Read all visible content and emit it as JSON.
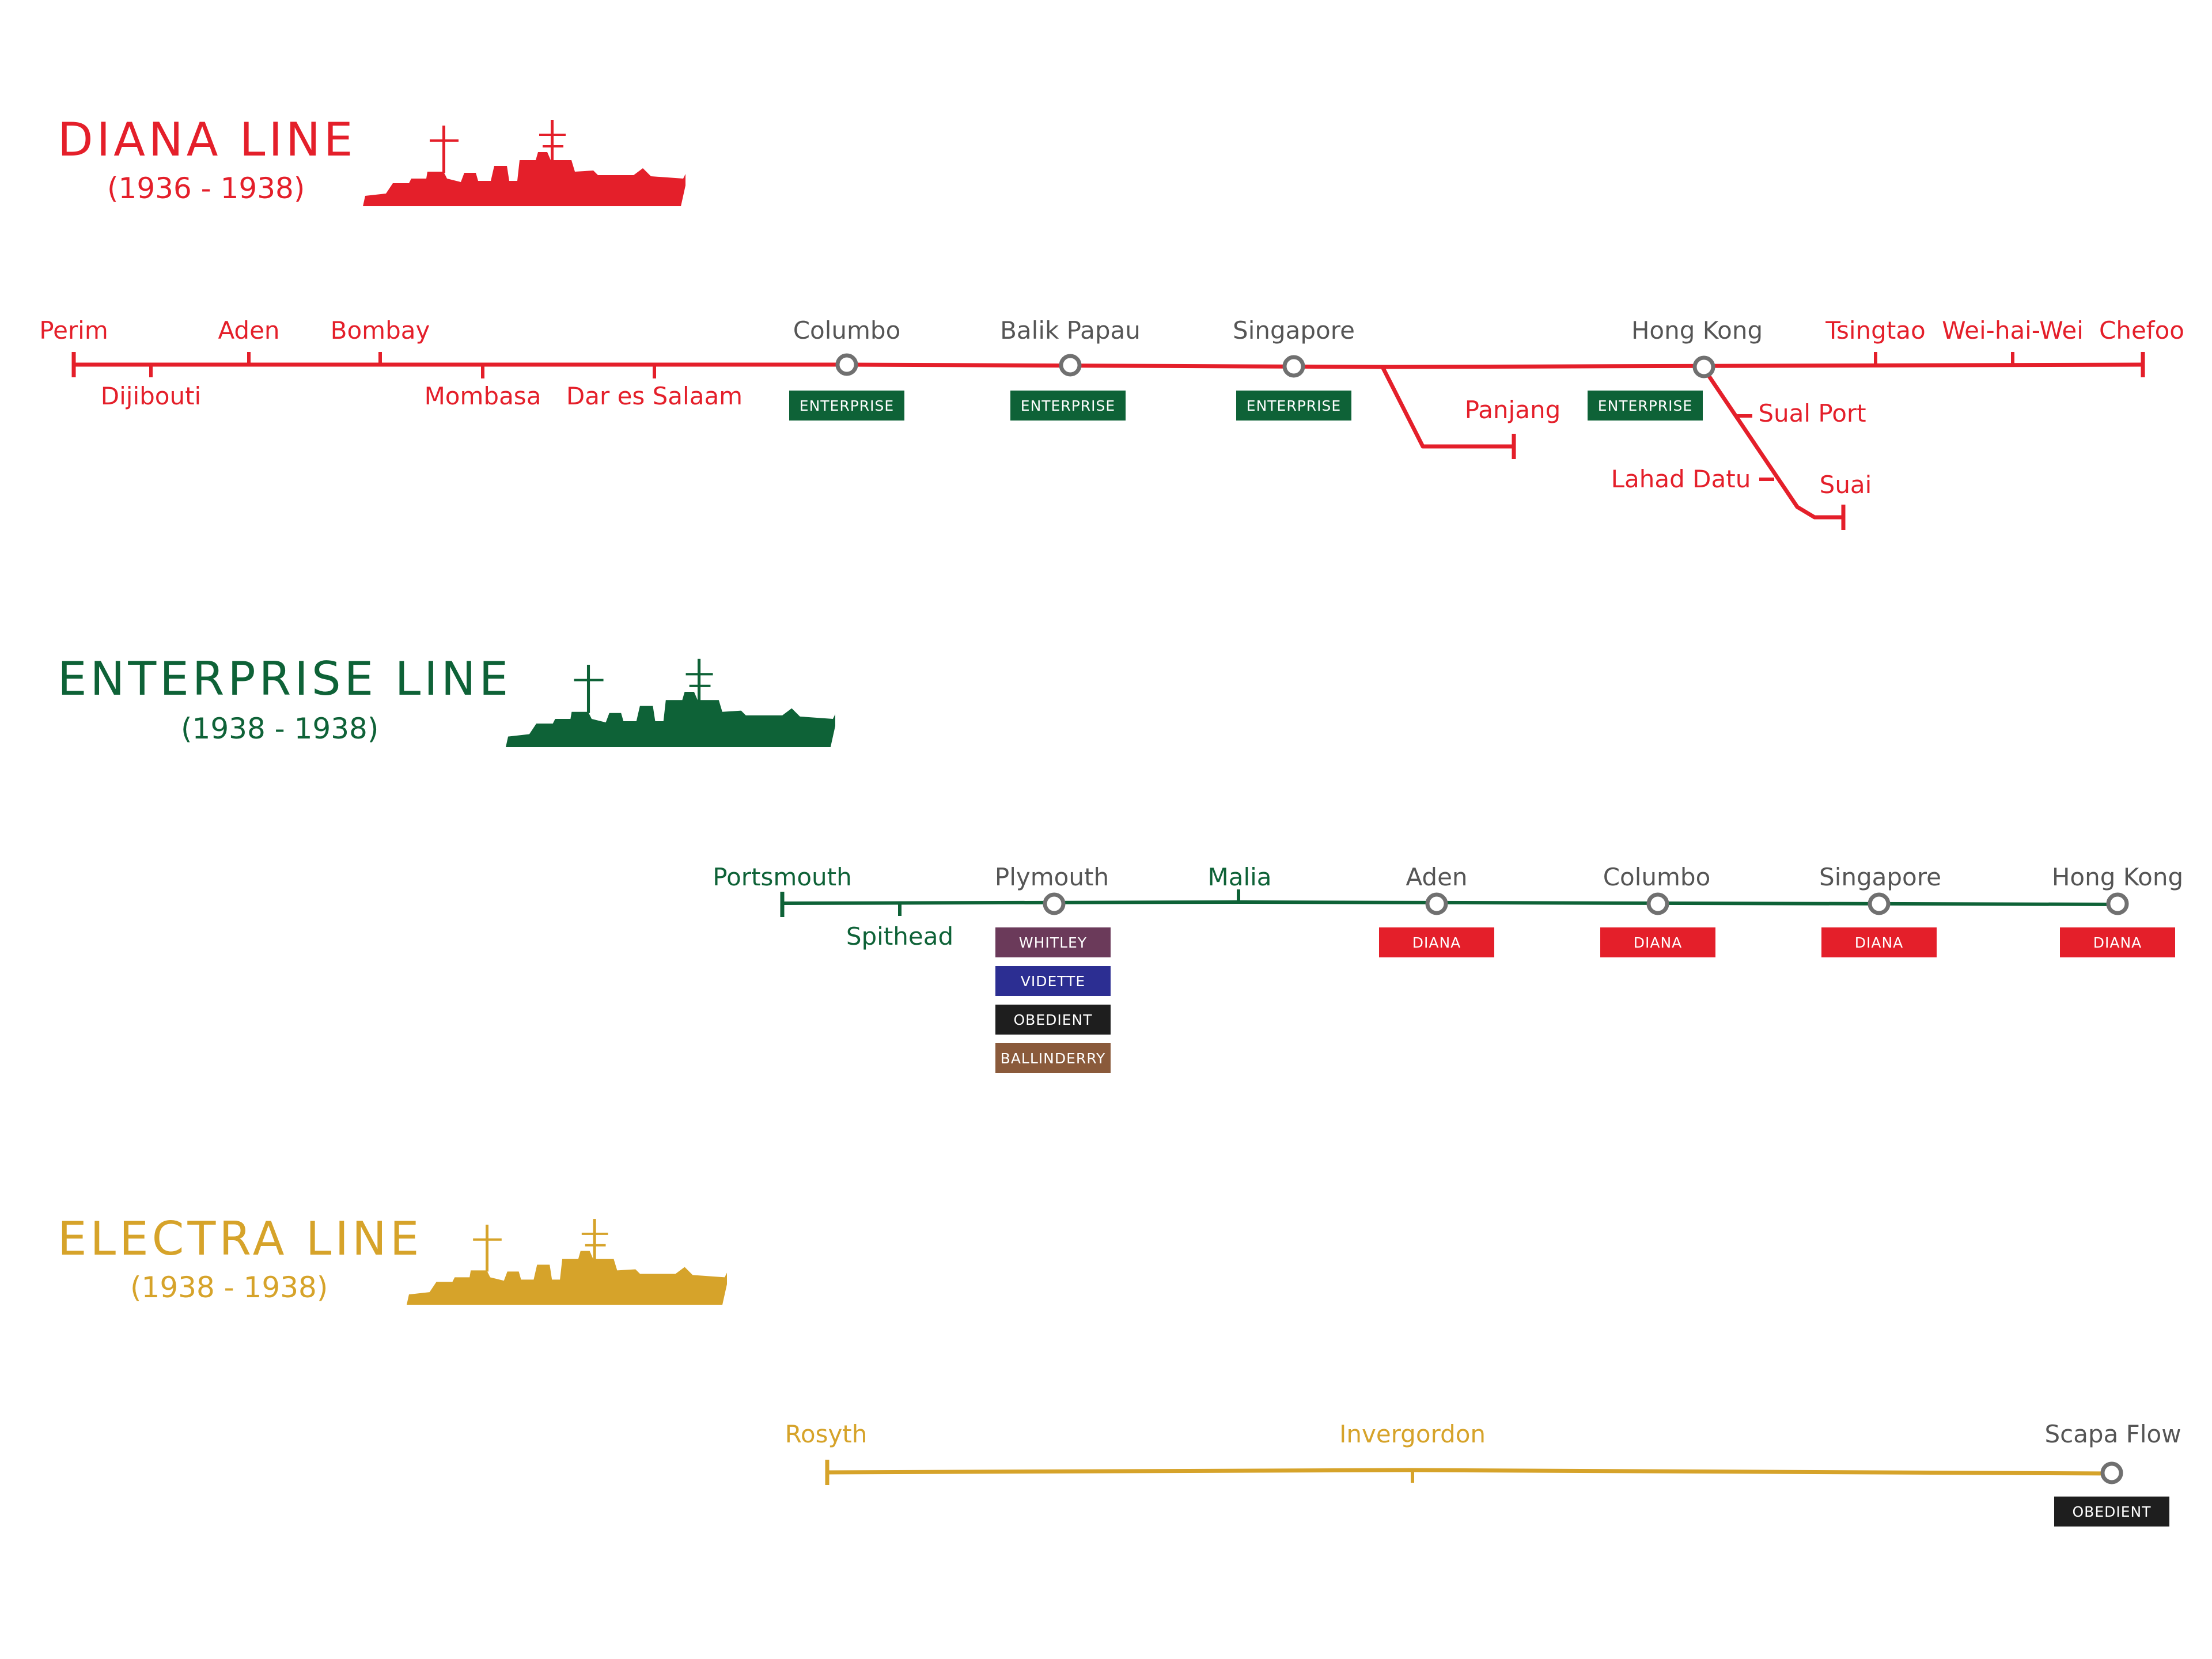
{
  "colors": {
    "diana": "#e41f2a",
    "enterprise": "#0e6237",
    "electra": "#d6a32a",
    "interchange_stroke": "#707070",
    "interchange_text": "#555555",
    "whitley": "#6b3a5a",
    "vidette": "#2c2e92",
    "obedient": "#1e1e1e",
    "ballinderry": "#8a5a3b"
  },
  "icons": {
    "ship": "ship-silhouette-icon",
    "interchange": "interchange-circle-icon"
  },
  "lines": [
    {
      "key": "diana",
      "title": "DIANA LINE",
      "years": "(1936 - 1938)",
      "stations": [
        "Perim",
        "Dijibouti",
        "Aden",
        "Bombay",
        "Mombasa",
        "Dar es Salaam",
        "Columbo",
        "Balik Papau",
        "Singapore",
        "Panjang",
        "Hong Kong",
        "Sual Port",
        "Lahad Datu",
        "Suai",
        "Tsingtao",
        "Wei-hai-Wei",
        "Chefoo"
      ],
      "interchange_badges": [
        "ENTERPRISE",
        "ENTERPRISE",
        "ENTERPRISE",
        "ENTERPRISE"
      ]
    },
    {
      "key": "enterprise",
      "title": "ENTERPRISE LINE",
      "years": "(1938 - 1938)",
      "stations": [
        "Portsmouth",
        "Spithead",
        "Plymouth",
        "Malia",
        "Aden",
        "Columbo",
        "Singapore",
        "Hong Kong"
      ],
      "interchange_badges": [
        "WHITLEY",
        "VIDETTE",
        "OBEDIENT",
        "BALLINDERRY",
        "DIANA",
        "DIANA",
        "DIANA",
        "DIANA"
      ]
    },
    {
      "key": "electra",
      "title": "ELECTRA LINE",
      "years": "(1938 - 1938)",
      "stations": [
        "Rosyth",
        "Invergordon",
        "Scapa Flow"
      ],
      "interchange_badges": [
        "OBEDIENT"
      ]
    }
  ]
}
